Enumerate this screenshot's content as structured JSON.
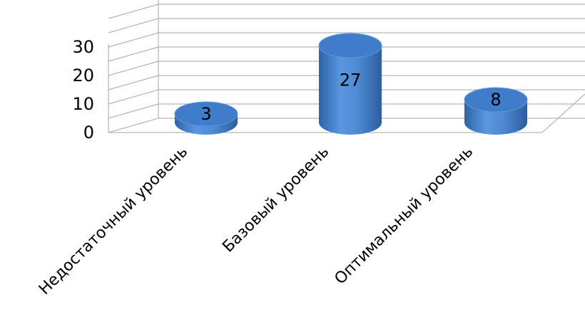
{
  "chart_data": {
    "type": "bar",
    "style": "3d-cylinder",
    "categories": [
      "Недостаточный уровень",
      "Базовый уровень",
      "Оптимальный уровень"
    ],
    "values": [
      3,
      27,
      8
    ],
    "ylim": [
      0,
      30
    ],
    "yticks": [
      0,
      10,
      20,
      30
    ],
    "grid": true,
    "legend": "none",
    "bar_color": "#4a86d2",
    "bar_top_color": "#3f7cc9",
    "gridline_color": "#a6a6a6"
  }
}
